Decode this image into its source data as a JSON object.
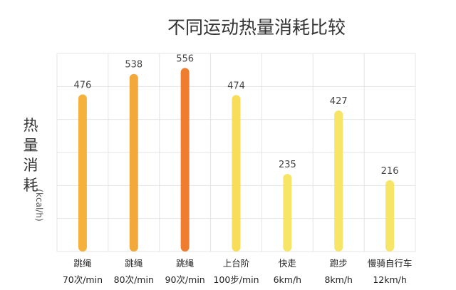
{
  "chart_data": {
    "type": "bar",
    "title": "不同运动热量消耗比较",
    "ylabel": "热量消耗",
    "yunit": "(kcal/h)",
    "ylim": [
      0,
      600
    ],
    "grid": true,
    "categories": [
      {
        "name": "跳绳",
        "detail": "70次/min"
      },
      {
        "name": "跳绳",
        "detail": "80次/min"
      },
      {
        "name": "跳绳",
        "detail": "90次/min"
      },
      {
        "name": "上台阶",
        "detail": "100步/min"
      },
      {
        "name": "快走",
        "detail": "6km/h"
      },
      {
        "name": "跑步",
        "detail": "8km/h"
      },
      {
        "name": "慢骑自行车",
        "detail": "12km/h"
      }
    ],
    "values": [
      476,
      538,
      556,
      474,
      235,
      427,
      216
    ],
    "colors": [
      "#f4b23c",
      "#f1a93c",
      "#ee7d30",
      "#f7dd5a",
      "#f7e567",
      "#f7e567",
      "#f7e567"
    ]
  }
}
